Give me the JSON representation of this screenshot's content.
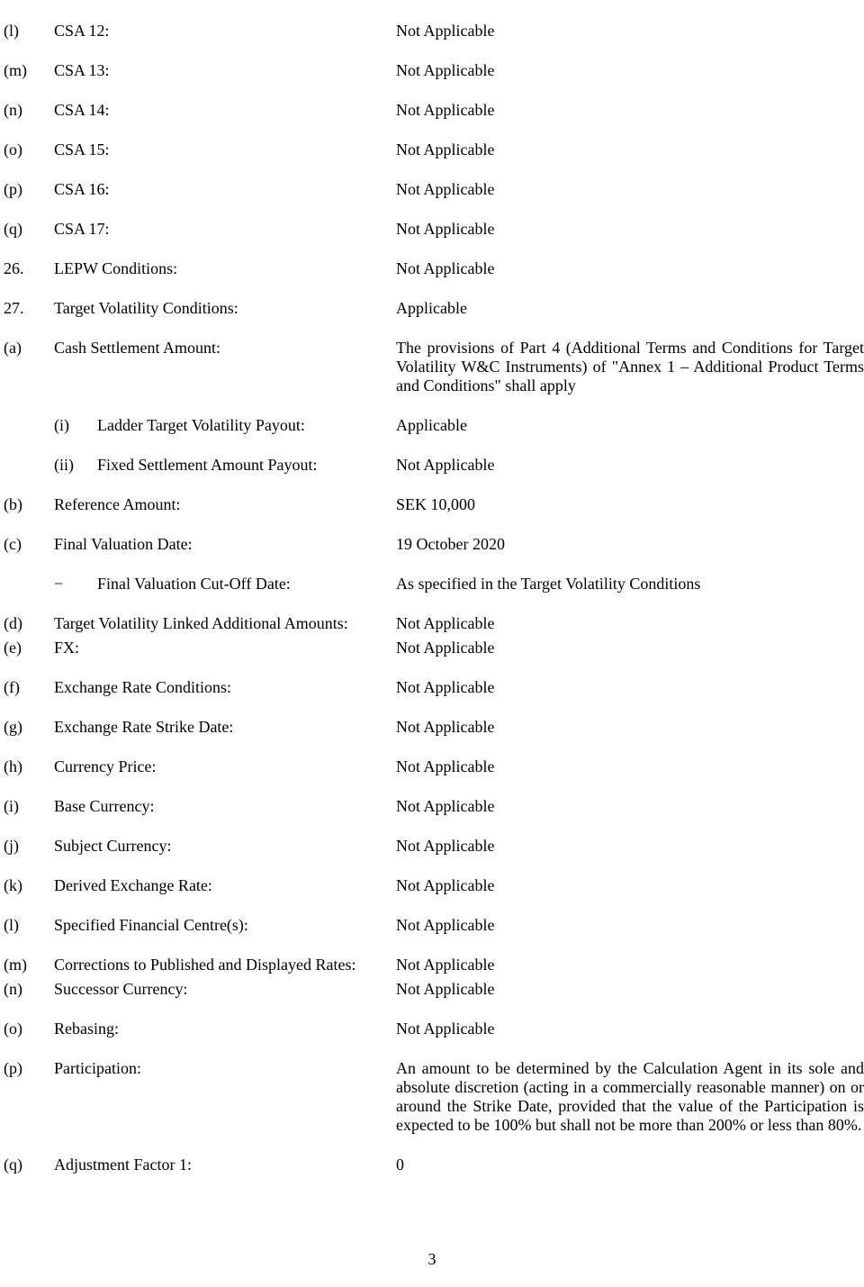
{
  "rows": {
    "l1": {
      "m": "(l)",
      "label": "CSA 12:",
      "value": "Not Applicable"
    },
    "m1": {
      "m": "(m)",
      "label": "CSA 13:",
      "value": "Not Applicable"
    },
    "n1": {
      "m": "(n)",
      "label": "CSA 14:",
      "value": "Not Applicable"
    },
    "o1": {
      "m": "(o)",
      "label": "CSA 15:",
      "value": "Not Applicable"
    },
    "p1": {
      "m": "(p)",
      "label": "CSA 16:",
      "value": "Not Applicable"
    },
    "q1": {
      "m": "(q)",
      "label": "CSA 17:",
      "value": "Not Applicable"
    },
    "r26": {
      "m": "26.",
      "label": "LEPW Conditions:",
      "value": "Not Applicable"
    },
    "r27": {
      "m": "27.",
      "label": "Target Volatility Conditions:",
      "value": "Applicable"
    },
    "a2": {
      "m": "(a)",
      "label": "Cash Settlement Amount:",
      "value": "The provisions of Part 4 (Additional Terms and Conditions for Target Volatility W&C Instruments) of \"Annex 1 – Additional Product Terms and Conditions\" shall apply"
    },
    "i2": {
      "sub": "(i)",
      "label": "Ladder Target Volatility Payout:",
      "value": "Applicable"
    },
    "ii2": {
      "sub": "(ii)",
      "label": "Fixed Settlement Amount Payout:",
      "value": "Not Applicable"
    },
    "b2": {
      "m": "(b)",
      "label": "Reference Amount:",
      "value": "SEK 10,000"
    },
    "c2": {
      "m": "(c)",
      "label": "Final Valuation Date:",
      "value": "19 October 2020"
    },
    "cut": {
      "dash": "−",
      "label": "Final Valuation Cut-Off Date:",
      "value": "As specified in the Target Volatility Conditions"
    },
    "d2": {
      "m": "(d)",
      "label": "Target Volatility Linked Additional Amounts:",
      "value": "Not Applicable"
    },
    "e2": {
      "m": "(e)",
      "label": "FX:",
      "value": "Not Applicable"
    },
    "f2": {
      "m": "(f)",
      "label": "Exchange Rate Conditions:",
      "value": "Not Applicable"
    },
    "g2": {
      "m": "(g)",
      "label": "Exchange Rate Strike Date:",
      "value": "Not Applicable"
    },
    "h2": {
      "m": "(h)",
      "label": "Currency Price:",
      "value": "Not Applicable"
    },
    "i3": {
      "m": "(i)",
      "label": "Base Currency:",
      "value": "Not Applicable"
    },
    "j2": {
      "m": "(j)",
      "label": "Subject Currency:",
      "value": "Not Applicable"
    },
    "k2": {
      "m": "(k)",
      "label": "Derived Exchange Rate:",
      "value": "Not Applicable"
    },
    "l2": {
      "m": "(l)",
      "label": "Specified Financial Centre(s):",
      "value": "Not Applicable"
    },
    "m2": {
      "m": "(m)",
      "label": "Corrections to Published and Displayed Rates:",
      "value": "Not Applicable"
    },
    "n2": {
      "m": "(n)",
      "label": "Successor Currency:",
      "value": "Not Applicable"
    },
    "o2": {
      "m": "(o)",
      "label": "Rebasing:",
      "value": "Not Applicable"
    },
    "p2": {
      "m": "(p)",
      "label": "Participation:",
      "value": "An amount to be determined by the Calculation Agent in its sole and absolute discretion (acting in a commercially reasonable manner) on or around the Strike Date, provided that the value of the Participation is expected to be 100% but shall not be more than 200% or less than 80%."
    },
    "q2": {
      "m": "(q)",
      "label": "Adjustment Factor 1:",
      "value": "0"
    }
  },
  "pageNumber": "3"
}
